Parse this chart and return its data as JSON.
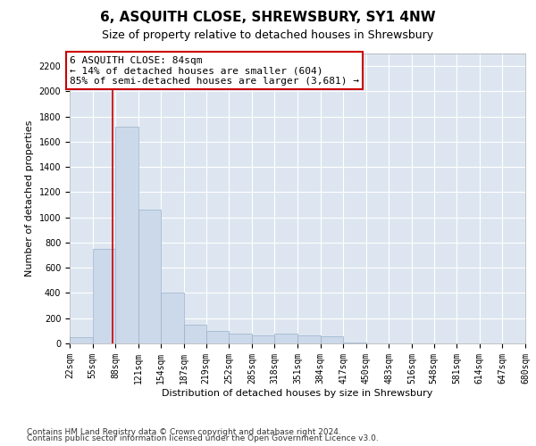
{
  "title": "6, ASQUITH CLOSE, SHREWSBURY, SY1 4NW",
  "subtitle": "Size of property relative to detached houses in Shrewsbury",
  "xlabel": "Distribution of detached houses by size in Shrewsbury",
  "ylabel": "Number of detached properties",
  "footer_line1": "Contains HM Land Registry data © Crown copyright and database right 2024.",
  "footer_line2": "Contains public sector information licensed under the Open Government Licence v3.0.",
  "annotation_title": "6 ASQUITH CLOSE: 84sqm",
  "annotation_line2": "← 14% of detached houses are smaller (604)",
  "annotation_line3": "85% of semi-detached houses are larger (3,681) →",
  "bar_color": "#ccd9ea",
  "bar_edge_color": "#9ab0cc",
  "vline_color": "#cc0000",
  "annotation_box_edgecolor": "#cc0000",
  "background_color": "#dde6f0",
  "bin_edges": [
    22,
    55,
    88,
    121,
    154,
    187,
    219,
    252,
    285,
    318,
    351,
    384,
    417,
    450,
    483,
    516,
    548,
    581,
    614,
    647,
    680
  ],
  "bar_heights": [
    50,
    750,
    1720,
    1060,
    400,
    150,
    100,
    75,
    65,
    80,
    65,
    55,
    10,
    3,
    2,
    1,
    1,
    0,
    0,
    0
  ],
  "ylim": [
    0,
    2300
  ],
  "yticks": [
    0,
    200,
    400,
    600,
    800,
    1000,
    1200,
    1400,
    1600,
    1800,
    2000,
    2200
  ],
  "vline_x": 84,
  "title_fontsize": 11,
  "subtitle_fontsize": 9,
  "label_fontsize": 8,
  "tick_fontsize": 7,
  "footer_fontsize": 6.5,
  "annotation_fontsize": 8
}
